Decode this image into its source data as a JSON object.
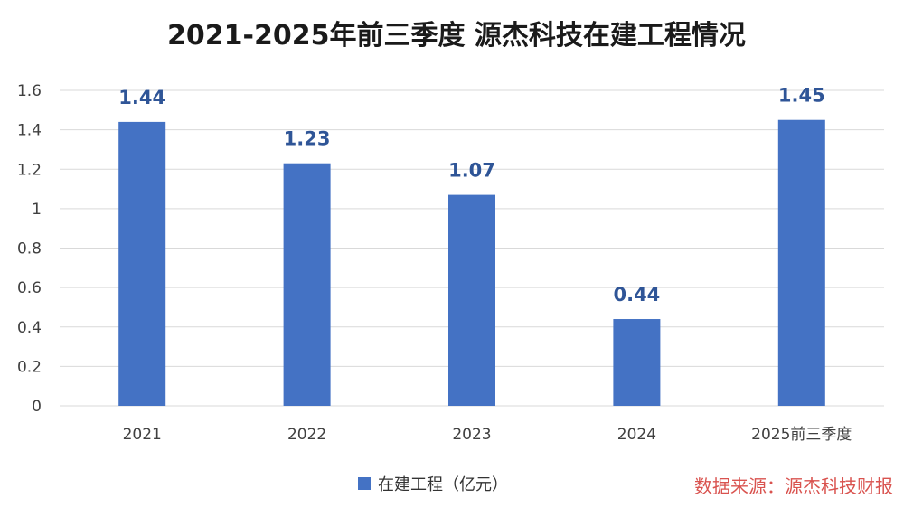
{
  "colors": {
    "bar": "#4472C4",
    "data_label": "#2F5597",
    "grid": "#d9d9d9",
    "axis_text": "#404040",
    "source": "#d9534f"
  },
  "source_text": "数据来源：源杰科技财报",
  "chart_data": {
    "type": "bar",
    "title": "2021-2025年前三季度 源杰科技在建工程情况",
    "categories": [
      "2021",
      "2022",
      "2023",
      "2024",
      "2025前三季度"
    ],
    "series": [
      {
        "name": "在建工程（亿元）",
        "values": [
          1.44,
          1.23,
          1.07,
          0.44,
          1.45
        ],
        "data_labels": [
          "1.44",
          "1.23",
          "1.07",
          "0.44",
          "1.45"
        ]
      }
    ],
    "ylim": [
      0,
      1.6
    ],
    "yticks": [
      0,
      0.2,
      0.4,
      0.6,
      0.8,
      1,
      1.2,
      1.4,
      1.6
    ],
    "ytick_labels": [
      "0",
      "0.2",
      "0.4",
      "0.6",
      "0.8",
      "1",
      "1.2",
      "1.4",
      "1.6"
    ],
    "grid": true,
    "legend_position": "bottom-center"
  }
}
